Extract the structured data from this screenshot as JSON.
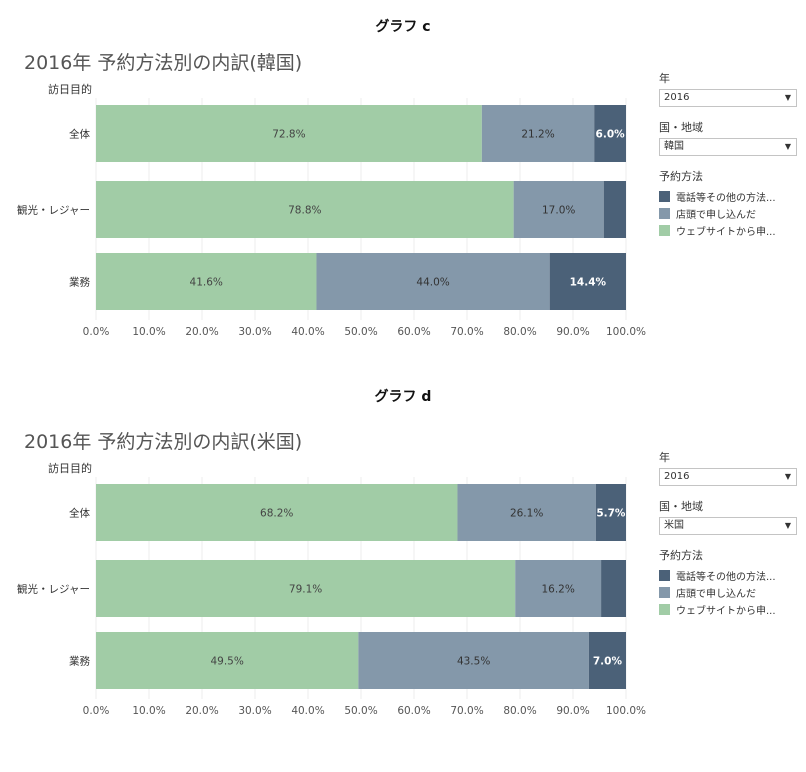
{
  "colors": {
    "web": "#a1cca6",
    "store": "#8498aa",
    "phone": "#4b6178"
  },
  "graphs": [
    {
      "label": "グラフ c",
      "title": "2016年 予約方法別の内訳(韓国)",
      "y_header": "訪日目的",
      "filters": {
        "year_label": "年",
        "year_value": "2016",
        "country_label": "国・地域",
        "country_value": "韓国"
      },
      "legend": {
        "title": "予約方法",
        "items": [
          {
            "label": "電話等その他の方法...",
            "color": "#4b6178"
          },
          {
            "label": "店頭で申し込んだ",
            "color": "#8498aa"
          },
          {
            "label": "ウェブサイトから申...",
            "color": "#a1cca6"
          }
        ]
      },
      "chart_data": {
        "type": "bar",
        "orientation": "horizontal",
        "stacked": true,
        "categories": [
          "全体",
          "観光・レジャー",
          "業務"
        ],
        "series": [
          {
            "name": "ウェブサイトから申...",
            "values": [
              72.8,
              78.8,
              41.6
            ],
            "labels": [
              "72.8%",
              "78.8%",
              "41.6%"
            ]
          },
          {
            "name": "店頭で申し込んだ",
            "values": [
              21.2,
              17.0,
              44.0
            ],
            "labels": [
              "21.2%",
              "17.0%",
              "44.0%"
            ]
          },
          {
            "name": "電話等その他の方法...",
            "values": [
              6.0,
              4.2,
              14.4
            ],
            "labels": [
              "6.0%",
              "",
              "14.4%"
            ]
          }
        ],
        "xlim": [
          0,
          100
        ],
        "xticks": [
          "0.0%",
          "10.0%",
          "20.0%",
          "30.0%",
          "40.0%",
          "50.0%",
          "60.0%",
          "70.0%",
          "80.0%",
          "90.0%",
          "100.0%"
        ],
        "grid": true
      }
    },
    {
      "label": "グラフ d",
      "title": "2016年 予約方法別の内訳(米国)",
      "y_header": "訪日目的",
      "filters": {
        "year_label": "年",
        "year_value": "2016",
        "country_label": "国・地域",
        "country_value": "米国"
      },
      "legend": {
        "title": "予約方法",
        "items": [
          {
            "label": "電話等その他の方法...",
            "color": "#4b6178"
          },
          {
            "label": "店頭で申し込んだ",
            "color": "#8498aa"
          },
          {
            "label": "ウェブサイトから申...",
            "color": "#a1cca6"
          }
        ]
      },
      "chart_data": {
        "type": "bar",
        "orientation": "horizontal",
        "stacked": true,
        "categories": [
          "全体",
          "観光・レジャー",
          "業務"
        ],
        "series": [
          {
            "name": "ウェブサイトから申...",
            "values": [
              68.2,
              79.1,
              49.5
            ],
            "labels": [
              "68.2%",
              "79.1%",
              "49.5%"
            ]
          },
          {
            "name": "店頭で申し込んだ",
            "values": [
              26.1,
              16.2,
              43.5
            ],
            "labels": [
              "26.1%",
              "16.2%",
              "43.5%"
            ]
          },
          {
            "name": "電話等その他の方法...",
            "values": [
              5.7,
              4.7,
              7.0
            ],
            "labels": [
              "5.7%",
              "",
              "7.0%"
            ]
          }
        ],
        "xlim": [
          0,
          100
        ],
        "xticks": [
          "0.0%",
          "10.0%",
          "20.0%",
          "30.0%",
          "40.0%",
          "50.0%",
          "60.0%",
          "70.0%",
          "80.0%",
          "90.0%",
          "100.0%"
        ],
        "grid": true
      }
    }
  ]
}
